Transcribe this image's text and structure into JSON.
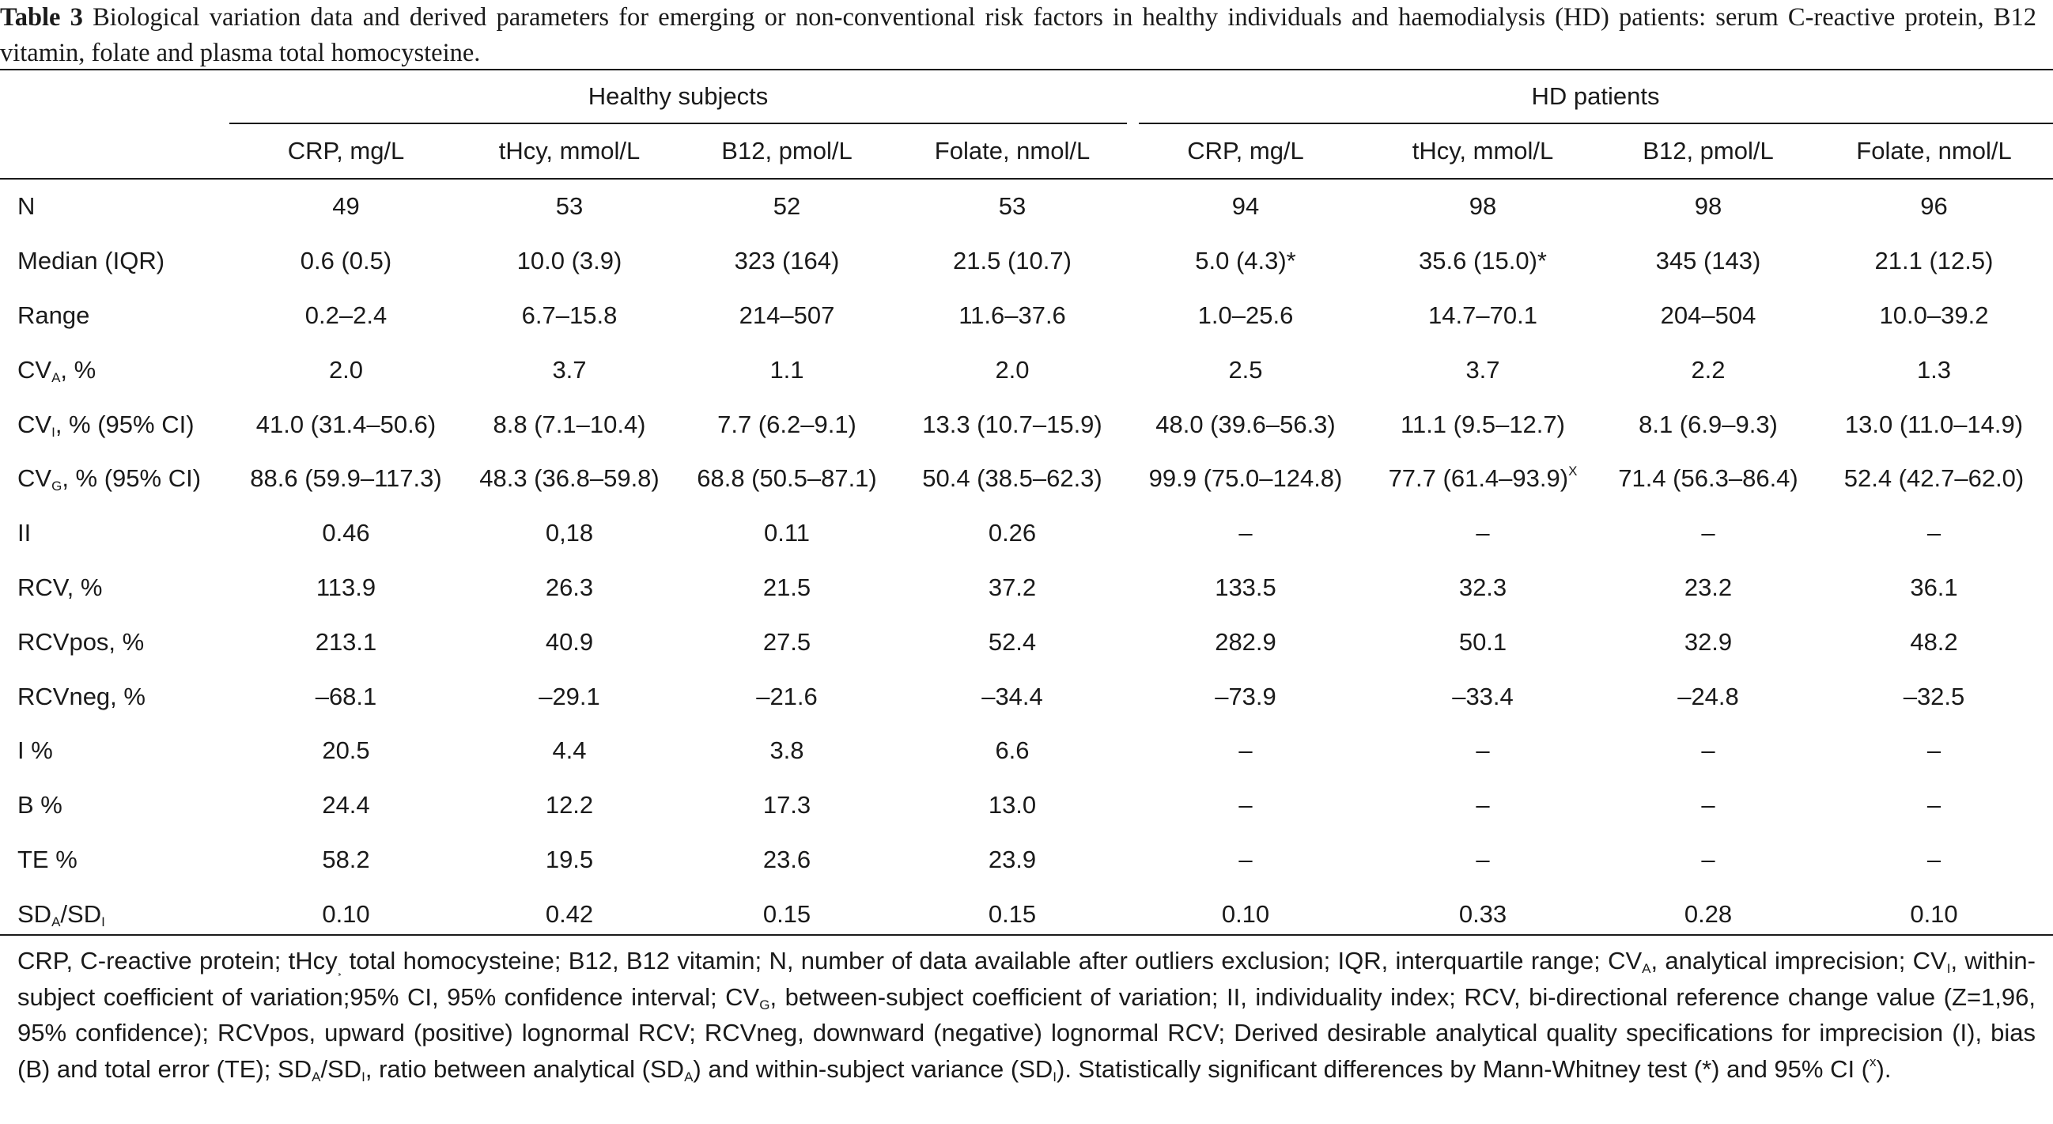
{
  "caption": {
    "label": "Table 3",
    "text": " Biological variation data and derived parameters for emerging or non-conventional risk factors in healthy individuals and haemodialysis (HD) patients: serum C-reactive protein, B12 vitamin, folate and plasma total homocysteine."
  },
  "groups": {
    "healthy": "Healthy subjects",
    "hd": "HD patients"
  },
  "columns": [
    "CRP, mg/L",
    "tHcy, mmol/L",
    "B12, pmol/L",
    "Folate, nmol/L",
    "CRP, mg/L",
    "tHcy, mmol/L",
    "B12, pmol/L",
    "Folate, nmol/L"
  ],
  "rows": [
    {
      "label": "N",
      "sub": "",
      "suffix": "",
      "cells": [
        "49",
        "53",
        "52",
        "53",
        "94",
        "98",
        "98",
        "96"
      ]
    },
    {
      "label": "Median (IQR)",
      "sub": "",
      "suffix": "",
      "cells": [
        "0.6 (0.5)",
        "10.0 (3.9)",
        "323 (164)",
        "21.5 (10.7)",
        "5.0 (4.3)*",
        "35.6 (15.0)*",
        "345 (143)",
        "21.1 (12.5)"
      ]
    },
    {
      "label": "Range",
      "sub": "",
      "suffix": "",
      "cells": [
        "0.2–2.4",
        "6.7–15.8",
        "214–507",
        "11.6–37.6",
        "1.0–25.6",
        "14.7–70.1",
        "204–504",
        "10.0–39.2"
      ]
    },
    {
      "label": "CV",
      "sub": "A",
      "suffix": ", %",
      "cells": [
        "2.0",
        "3.7",
        "1.1",
        "2.0",
        "2.5",
        "3.7",
        "2.2",
        "1.3"
      ]
    },
    {
      "label": "CV",
      "sub": "I",
      "suffix": ", % (95% CI)",
      "cells": [
        "41.0 (31.4–50.6)",
        "8.8 (7.1–10.4)",
        "7.7 (6.2–9.1)",
        "13.3 (10.7–15.9)",
        "48.0 (39.6–56.3)",
        "11.1 (9.5–12.7)",
        "8.1 (6.9–9.3)",
        "13.0 (11.0–14.9)"
      ]
    },
    {
      "label": "CV",
      "sub": "G",
      "suffix": ", % (95% CI)",
      "cells": [
        "88.6 (59.9–117.3)",
        "48.3 (36.8–59.8)",
        "68.8 (50.5–87.1)",
        "50.4 (38.5–62.3)",
        "99.9 (75.0–124.8)",
        "77.7 (61.4–93.9)",
        "71.4 (56.3–86.4)",
        "52.4 (42.7–62.0)"
      ]
    },
    {
      "label": "II",
      "sub": "",
      "suffix": "",
      "cells": [
        "0.46",
        "0,18",
        "0.11",
        "0.26",
        "–",
        "–",
        "–",
        "–"
      ]
    },
    {
      "label": "RCV, %",
      "sub": "",
      "suffix": "",
      "cells": [
        "113.9",
        "26.3",
        "21.5",
        "37.2",
        "133.5",
        "32.3",
        "23.2",
        "36.1"
      ]
    },
    {
      "label": "RCVpos, %",
      "sub": "",
      "suffix": "",
      "cells": [
        "213.1",
        "40.9",
        "27.5",
        "52.4",
        "282.9",
        "50.1",
        "32.9",
        "48.2"
      ]
    },
    {
      "label": "RCVneg, %",
      "sub": "",
      "suffix": "",
      "cells": [
        "–68.1",
        "–29.1",
        "–21.6",
        "–34.4",
        "–73.9",
        "–33.4",
        "–24.8",
        "–32.5"
      ]
    },
    {
      "label": "I %",
      "sub": "",
      "suffix": "",
      "cells": [
        "20.5",
        "4.4",
        "3.8",
        "6.6",
        "–",
        "–",
        "–",
        "–"
      ]
    },
    {
      "label": "B %",
      "sub": "",
      "suffix": "",
      "cells": [
        "24.4",
        "12.2",
        "17.3",
        "13.0",
        "–",
        "–",
        "–",
        "–"
      ]
    },
    {
      "label": "TE %",
      "sub": "",
      "suffix": "",
      "cells": [
        "58.2",
        "19.5",
        "23.6",
        "23.9",
        "–",
        "–",
        "–",
        "–"
      ]
    },
    {
      "label": "SD",
      "sub": "A",
      "suffix": "/SD",
      "sub2": "I",
      "cells": [
        "0.10",
        "0.42",
        "0.15",
        "0.15",
        "0.10",
        "0.33",
        "0.28",
        "0.10"
      ]
    }
  ],
  "cv_g_hd_tHcy_mark": "X",
  "footnote": {
    "p1": "CRP, C-reactive protein; tHcy",
    "p1_sub": "¸",
    "p2": " total homocysteine; B12, B12 vitamin; N, number of data available after outliers exclusion; IQR, interquartile range; CV",
    "p2_sub": "A",
    "p3": ", analytical imprecision; CV",
    "p3_sub": "I",
    "p4": ", within-subject coefficient of variation;95% CI, 95% confidence interval; CV",
    "p4_sub": "G",
    "p5": ", between-subject coefficient of variation; II, individuality index; RCV, bi-directional reference change value (Z=1,96, 95% confidence); RCVpos, upward (positive) lognormal RCV; RCVneg, downward (negative) lognormal RCV; Derived desirable analytical quality specifications for imprecision (I), bias (B) and total error (TE); SD",
    "p5_sub": "A",
    "p6": "/SD",
    "p6_sub": "I",
    "p7": ", ratio between analytical (SD",
    "p7_sub": "A",
    "p8": ") and within-subject variance (SD",
    "p8_sub": "I",
    "p9": "). Statistically significant differences by Mann-Whitney test (*) and 95% CI (",
    "p9_sup": "x",
    "p10": ")."
  }
}
